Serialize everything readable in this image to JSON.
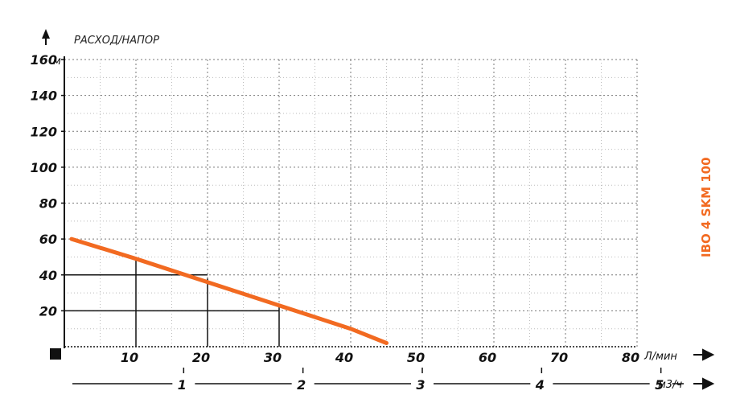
{
  "chart_data": {
    "type": "line",
    "title": "РАСХОД/НАПОР",
    "y_unit": "м",
    "x_unit": "Л/мин",
    "x2_unit": "м3/ч",
    "model_label": "IBO 4 SKM 100",
    "xlim": [
      0,
      80
    ],
    "ylim": [
      0,
      160
    ],
    "x_ticks": [
      "10",
      "20",
      "30",
      "40",
      "50",
      "60",
      "70",
      "80"
    ],
    "y_ticks": [
      "20",
      "40",
      "60",
      "80",
      "100",
      "120",
      "140",
      "160"
    ],
    "x2_ticks": [
      "1",
      "2",
      "3",
      "4",
      "5"
    ],
    "x2_tick_values": [
      1,
      2,
      3,
      4,
      5
    ],
    "grid": true,
    "series": [
      {
        "color": "#f26a21",
        "points": [
          [
            1,
            60
          ],
          [
            10,
            49
          ],
          [
            20,
            36
          ],
          [
            30,
            23
          ],
          [
            40,
            10
          ],
          [
            45,
            2
          ]
        ]
      }
    ],
    "reference_points": [
      [
        10,
        49
      ],
      [
        20,
        38
      ],
      [
        30,
        22
      ]
    ],
    "reference_levels": [
      40,
      20
    ]
  }
}
